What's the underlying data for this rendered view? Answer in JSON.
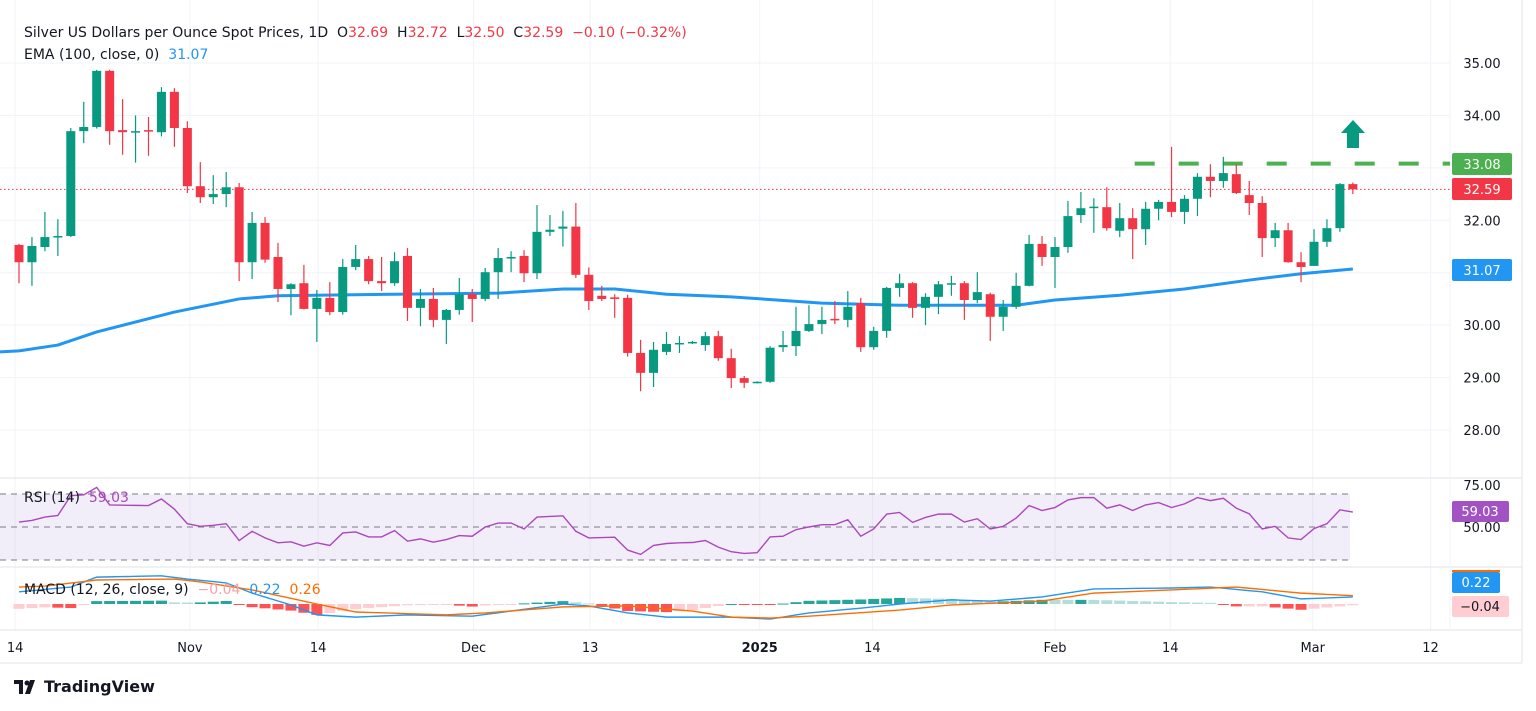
{
  "legend": {
    "title": "Silver US Dollars per Ounce Spot Prices, 1D",
    "o_label": "O",
    "o_value": "32.69",
    "h_label": "H",
    "h_value": "32.72",
    "l_label": "L",
    "l_value": "32.50",
    "c_label": "C",
    "c_value": "32.59",
    "change": "−0.10 (−0.32%)",
    "ema_label": "EMA (100, close, 0)",
    "ema_value": "31.07"
  },
  "rsi_legend": {
    "label": "RSI (14)",
    "value": "59.03"
  },
  "macd_legend": {
    "label": "MACD (12, 26, close, 9)",
    "hist": "−0.04",
    "macd": "0.22",
    "signal": "0.26"
  },
  "badges": {
    "resistance": "33.08",
    "last": "32.59",
    "ema": "31.07",
    "rsi": "59.03",
    "macd": "0.22",
    "hist": "−0.04"
  },
  "colors": {
    "up": "#089981",
    "down": "#f23645",
    "ema": "#2196f3",
    "resistance": "#4caf50",
    "rsi": "#ab47bc",
    "macd": "#2196f3",
    "signal": "#ff6d00"
  },
  "footer": {
    "brand": "TradingView"
  },
  "chart_data": {
    "type": "candlestick",
    "title": "Silver US Dollars per Ounce Spot Prices, 1D",
    "ylim": [
      27.2,
      35.5
    ],
    "price_ticks": [
      "35.00",
      "34.00",
      "32.00",
      "30.00",
      "29.00",
      "28.00"
    ],
    "price_tick_values": [
      35,
      34,
      32,
      30,
      29,
      28
    ],
    "grid_price_values": [
      35,
      34,
      33,
      32,
      31,
      30,
      29,
      28
    ],
    "date_ticks": [
      {
        "label": "14",
        "index": -0.3
      },
      {
        "label": "Nov",
        "index": 13.2
      },
      {
        "label": "14",
        "index": 23.1
      },
      {
        "label": "Dec",
        "index": 35.1
      },
      {
        "label": "13",
        "index": 44.1
      },
      {
        "label": "2025",
        "index": 57.2,
        "bold": true
      },
      {
        "label": "14",
        "index": 65.9
      },
      {
        "label": "Feb",
        "index": 80
      },
      {
        "label": "14",
        "index": 88.9
      },
      {
        "label": "Mar",
        "index": 99.9
      },
      {
        "label": "12",
        "index": 109
      }
    ],
    "candles_ohlc": [
      [
        31.53,
        31.55,
        30.8,
        31.2
      ],
      [
        31.2,
        31.68,
        30.75,
        31.51
      ],
      [
        31.49,
        32.16,
        31.41,
        31.68
      ],
      [
        31.68,
        32.02,
        31.32,
        31.7
      ],
      [
        31.7,
        33.76,
        31.68,
        33.7
      ],
      [
        33.7,
        34.26,
        33.47,
        33.78
      ],
      [
        33.78,
        34.87,
        33.75,
        34.85
      ],
      [
        34.85,
        34.87,
        33.44,
        33.7
      ],
      [
        33.72,
        34.31,
        33.25,
        33.68
      ],
      [
        33.68,
        34.0,
        33.1,
        33.7
      ],
      [
        33.72,
        33.97,
        33.23,
        33.7
      ],
      [
        33.68,
        34.54,
        33.6,
        34.45
      ],
      [
        34.45,
        34.52,
        33.4,
        33.76
      ],
      [
        33.76,
        33.89,
        32.52,
        32.65
      ],
      [
        32.65,
        33.11,
        32.33,
        32.44
      ],
      [
        32.44,
        32.86,
        32.31,
        32.5
      ],
      [
        32.5,
        32.92,
        32.25,
        32.63
      ],
      [
        32.63,
        32.71,
        30.84,
        31.2
      ],
      [
        31.2,
        32.16,
        30.88,
        31.95
      ],
      [
        31.95,
        32.06,
        31.19,
        31.25
      ],
      [
        31.3,
        31.57,
        30.44,
        30.69
      ],
      [
        30.69,
        30.8,
        30.19,
        30.78
      ],
      [
        30.8,
        31.15,
        30.3,
        30.31
      ],
      [
        30.31,
        30.67,
        29.68,
        30.52
      ],
      [
        30.52,
        30.82,
        30.19,
        30.25
      ],
      [
        30.25,
        31.26,
        30.2,
        31.11
      ],
      [
        31.11,
        31.53,
        31.05,
        31.26
      ],
      [
        31.26,
        31.32,
        30.78,
        30.84
      ],
      [
        30.84,
        31.3,
        30.65,
        30.8
      ],
      [
        30.8,
        31.39,
        30.75,
        31.22
      ],
      [
        31.32,
        31.47,
        30.08,
        30.33
      ],
      [
        30.33,
        30.69,
        29.98,
        30.5
      ],
      [
        30.5,
        30.71,
        29.96,
        30.1
      ],
      [
        30.1,
        30.31,
        29.64,
        30.29
      ],
      [
        30.29,
        30.9,
        30.2,
        30.59
      ],
      [
        30.59,
        30.69,
        30.06,
        30.5
      ],
      [
        30.5,
        31.09,
        30.46,
        31.01
      ],
      [
        31.01,
        31.47,
        30.5,
        31.28
      ],
      [
        31.27,
        31.41,
        31.01,
        31.3
      ],
      [
        31.32,
        31.43,
        30.82,
        30.99
      ],
      [
        30.99,
        32.29,
        30.88,
        31.78
      ],
      [
        31.78,
        32.1,
        31.7,
        31.82
      ],
      [
        31.84,
        32.18,
        31.5,
        31.88
      ],
      [
        31.88,
        32.33,
        30.9,
        30.96
      ],
      [
        30.96,
        31.1,
        30.29,
        30.46
      ],
      [
        30.56,
        30.75,
        30.46,
        30.5
      ],
      [
        30.53,
        30.59,
        30.14,
        30.5
      ],
      [
        30.52,
        30.58,
        29.4,
        29.47
      ],
      [
        29.47,
        29.72,
        28.74,
        29.09
      ],
      [
        29.09,
        29.68,
        28.82,
        29.53
      ],
      [
        29.49,
        29.87,
        29.43,
        29.64
      ],
      [
        29.64,
        29.79,
        29.47,
        29.66
      ],
      [
        29.66,
        29.7,
        29.64,
        29.68
      ],
      [
        29.62,
        29.87,
        29.51,
        29.79
      ],
      [
        29.79,
        29.89,
        29.32,
        29.37
      ],
      [
        29.37,
        29.55,
        28.8,
        28.99
      ],
      [
        28.99,
        29.03,
        28.8,
        28.9
      ],
      [
        28.9,
        28.93,
        28.89,
        28.92
      ],
      [
        28.92,
        29.6,
        28.9,
        29.57
      ],
      [
        29.58,
        29.89,
        29.49,
        29.62
      ],
      [
        29.6,
        30.35,
        29.41,
        29.89
      ],
      [
        29.89,
        30.38,
        29.87,
        30.02
      ],
      [
        30.02,
        30.35,
        29.83,
        30.1
      ],
      [
        30.12,
        30.46,
        30.02,
        30.1
      ],
      [
        30.1,
        30.65,
        29.96,
        30.35
      ],
      [
        30.42,
        30.52,
        29.49,
        29.58
      ],
      [
        29.58,
        29.97,
        29.53,
        29.89
      ],
      [
        29.89,
        30.73,
        29.76,
        30.71
      ],
      [
        30.71,
        30.98,
        30.54,
        30.8
      ],
      [
        30.8,
        30.82,
        30.14,
        30.33
      ],
      [
        30.33,
        30.61,
        30.0,
        30.54
      ],
      [
        30.54,
        30.84,
        30.21,
        30.78
      ],
      [
        30.78,
        30.94,
        30.56,
        30.8
      ],
      [
        30.8,
        30.84,
        30.1,
        30.48
      ],
      [
        30.48,
        31.01,
        30.42,
        30.63
      ],
      [
        30.59,
        30.62,
        29.7,
        30.16
      ],
      [
        30.16,
        30.48,
        29.89,
        30.35
      ],
      [
        30.35,
        31.0,
        30.31,
        30.75
      ],
      [
        30.75,
        31.72,
        30.74,
        31.55
      ],
      [
        31.55,
        31.7,
        31.13,
        31.3
      ],
      [
        31.3,
        31.68,
        30.71,
        31.49
      ],
      [
        31.49,
        32.37,
        31.38,
        32.08
      ],
      [
        32.1,
        32.54,
        31.95,
        32.23
      ],
      [
        32.24,
        32.42,
        31.76,
        32.26
      ],
      [
        32.25,
        32.63,
        31.8,
        31.85
      ],
      [
        31.8,
        32.33,
        31.68,
        32.04
      ],
      [
        32.04,
        32.23,
        31.26,
        31.83
      ],
      [
        31.83,
        32.35,
        31.53,
        32.22
      ],
      [
        32.22,
        32.39,
        32.0,
        32.35
      ],
      [
        32.35,
        33.4,
        32.06,
        32.16
      ],
      [
        32.16,
        32.48,
        31.93,
        32.41
      ],
      [
        32.41,
        32.9,
        32.08,
        32.83
      ],
      [
        32.83,
        33.07,
        32.44,
        32.75
      ],
      [
        32.75,
        33.21,
        32.62,
        32.9
      ],
      [
        32.88,
        33.07,
        32.5,
        32.52
      ],
      [
        32.48,
        32.75,
        32.1,
        32.33
      ],
      [
        32.33,
        32.46,
        31.3,
        31.66
      ],
      [
        31.66,
        31.95,
        31.49,
        31.81
      ],
      [
        31.81,
        31.95,
        31.19,
        31.2
      ],
      [
        31.2,
        31.39,
        30.82,
        31.11
      ],
      [
        31.13,
        31.83,
        31.13,
        31.59
      ],
      [
        31.59,
        32.02,
        31.49,
        31.85
      ],
      [
        31.85,
        32.71,
        31.78,
        32.69
      ],
      [
        32.69,
        32.72,
        32.5,
        32.59
      ]
    ],
    "ema100_points": [
      [
        0,
        29.51
      ],
      [
        3,
        29.62
      ],
      [
        6,
        29.87
      ],
      [
        12,
        30.25
      ],
      [
        17,
        30.5
      ],
      [
        20,
        30.56
      ],
      [
        29,
        30.59
      ],
      [
        37,
        30.61
      ],
      [
        42,
        30.69
      ],
      [
        46,
        30.69
      ],
      [
        50,
        30.59
      ],
      [
        55,
        30.54
      ],
      [
        62,
        30.42
      ],
      [
        68,
        30.38
      ],
      [
        77,
        30.38
      ],
      [
        80,
        30.48
      ],
      [
        85,
        30.57
      ],
      [
        90,
        30.69
      ],
      [
        95,
        30.86
      ],
      [
        99,
        30.98
      ],
      [
        103,
        31.07
      ]
    ],
    "resistance_level": 33.08,
    "resistance_from_index": 86,
    "last_price": 32.59,
    "rsi": {
      "ylim": [
        20,
        80
      ],
      "levels": [
        70,
        50,
        30
      ],
      "ticks": [
        "75.00",
        "50.00"
      ],
      "tick_values": [
        75,
        50
      ],
      "values": [
        53,
        54,
        56,
        57,
        69,
        69.5,
        74,
        63.4,
        63.2,
        63.1,
        63,
        67,
        60.8,
        52,
        50.4,
        51,
        52,
        41.8,
        47.4,
        43.4,
        40.4,
        41,
        38.4,
        40.4,
        38.8,
        46.4,
        47,
        44,
        44,
        47.8,
        41.4,
        42.8,
        40.8,
        42.4,
        44.8,
        44.4,
        50,
        52.4,
        52.4,
        48.8,
        56,
        56.4,
        56.8,
        47.4,
        43.4,
        43.6,
        43.8,
        36,
        33.4,
        38.8,
        40,
        40.4,
        40.6,
        41.8,
        37.8,
        35,
        34,
        34.4,
        44,
        44.4,
        48.4,
        50,
        51.4,
        51.4,
        54.4,
        44.4,
        48.8,
        57.8,
        58.8,
        52.8,
        55.8,
        57.8,
        57.8,
        53,
        55,
        48.8,
        50.4,
        55.4,
        63,
        60,
        61.8,
        66.4,
        67.8,
        67.8,
        61.4,
        63.4,
        60,
        63.4,
        64.8,
        61.8,
        64,
        67.8,
        66,
        67.4,
        61.4,
        58,
        48.8,
        50.4,
        43.4,
        42.4,
        49,
        52,
        60.4,
        59.03
      ]
    },
    "macd": {
      "macd_points": [
        [
          0,
          0.38
        ],
        [
          4,
          0.53
        ],
        [
          6,
          0.84
        ],
        [
          11,
          0.88
        ],
        [
          13,
          0.78
        ],
        [
          16,
          0.66
        ],
        [
          18,
          0.34
        ],
        [
          21,
          -0.03
        ],
        [
          23,
          -0.34
        ],
        [
          26,
          -0.41
        ],
        [
          30,
          -0.34
        ],
        [
          35,
          -0.38
        ],
        [
          38,
          -0.22
        ],
        [
          42,
          0
        ],
        [
          44,
          -0.06
        ],
        [
          47,
          -0.28
        ],
        [
          50,
          -0.41
        ],
        [
          55,
          -0.41
        ],
        [
          58,
          -0.47
        ],
        [
          61,
          -0.28
        ],
        [
          65,
          -0.13
        ],
        [
          68,
          0
        ],
        [
          72,
          0.13
        ],
        [
          75,
          0.09
        ],
        [
          79,
          0.22
        ],
        [
          83,
          0.47
        ],
        [
          89,
          0.5
        ],
        [
          92,
          0.53
        ],
        [
          96,
          0.38
        ],
        [
          99,
          0.16
        ],
        [
          103,
          0.22
        ]
      ],
      "signal_points": [
        [
          0,
          0.53
        ],
        [
          2,
          0.56
        ],
        [
          6,
          0.75
        ],
        [
          12,
          0.78
        ],
        [
          14,
          0.69
        ],
        [
          18,
          0.44
        ],
        [
          23,
          0
        ],
        [
          26,
          -0.25
        ],
        [
          33,
          -0.34
        ],
        [
          36,
          -0.28
        ],
        [
          42,
          -0.09
        ],
        [
          47,
          -0.06
        ],
        [
          52,
          -0.22
        ],
        [
          55,
          -0.41
        ],
        [
          58,
          -0.44
        ],
        [
          61,
          -0.38
        ],
        [
          68,
          -0.19
        ],
        [
          72,
          -0.03
        ],
        [
          79,
          0.09
        ],
        [
          83,
          0.34
        ],
        [
          89,
          0.44
        ],
        [
          94,
          0.53
        ],
        [
          99,
          0.34
        ],
        [
          103,
          0.26
        ]
      ]
    }
  }
}
